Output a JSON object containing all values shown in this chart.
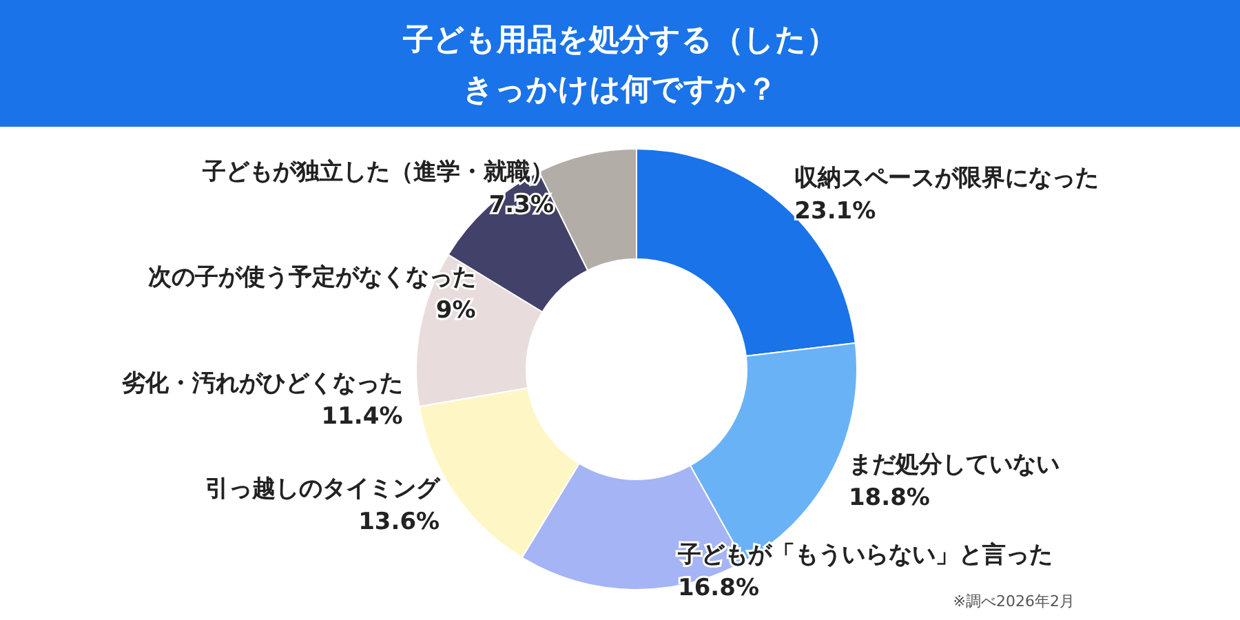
{
  "chart_data": {
    "type": "donut",
    "title": "子ども用品を処分する（した）きっかけは何ですか？",
    "categories": [
      "収納スペースが限界になった",
      "まだ処分していない",
      "子どもが「もういらない」と言った",
      "引っ越しのタイミング",
      "劣化・汚れがひどくなった",
      "次の子が使う予定がなくなった",
      "子どもが独立した（進学・就職）"
    ],
    "values": [
      23.1,
      18.8,
      16.8,
      13.6,
      11.4,
      9,
      7.3
    ],
    "colors": [
      "#1a73e8",
      "#6ab2f6",
      "#a4b4f4",
      "#fff6c6",
      "#e9dcdc",
      "#414169",
      "#b3ada8"
    ],
    "value_labels": [
      "23.1%",
      "18.8%",
      "16.8%",
      "13.6%",
      "11.4%",
      "9%",
      "7.3%"
    ],
    "annotations": [
      "※調べ2026年2月"
    ]
  }
}
